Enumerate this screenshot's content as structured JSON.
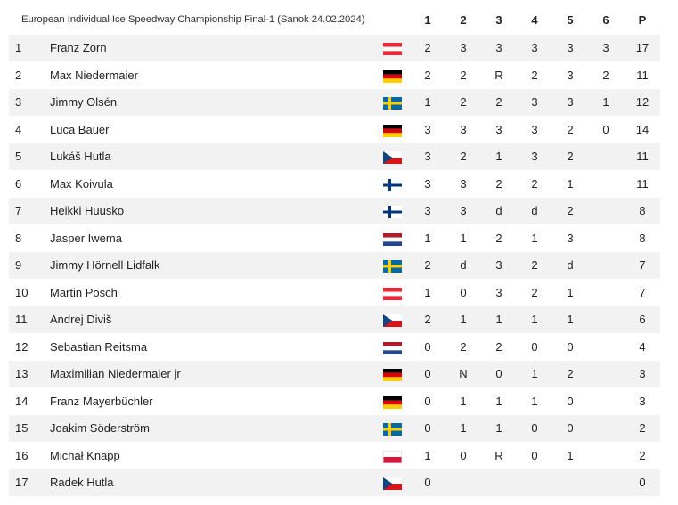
{
  "table": {
    "title": "European Individual Ice Speedway Championship Final-1 (Sanok 24.02.2024)",
    "columns": [
      "1",
      "2",
      "3",
      "4",
      "5",
      "6",
      "P"
    ],
    "rows": [
      {
        "pos": "1",
        "name": "Franz Zorn",
        "flag": "AUT",
        "heats": [
          "2",
          "3",
          "3",
          "3",
          "3",
          "3"
        ],
        "points": "17"
      },
      {
        "pos": "2",
        "name": "Max Niedermaier",
        "flag": "GER",
        "heats": [
          "2",
          "2",
          "R",
          "2",
          "3",
          "2"
        ],
        "points": "11"
      },
      {
        "pos": "3",
        "name": "Jimmy Olsén",
        "flag": "SWE",
        "heats": [
          "1",
          "2",
          "2",
          "3",
          "3",
          "1"
        ],
        "points": "12"
      },
      {
        "pos": "4",
        "name": "Luca Bauer",
        "flag": "GER",
        "heats": [
          "3",
          "3",
          "3",
          "3",
          "2",
          "0"
        ],
        "points": "14"
      },
      {
        "pos": "5",
        "name": "Lukáš Hutla",
        "flag": "CZE",
        "heats": [
          "3",
          "2",
          "1",
          "3",
          "2",
          ""
        ],
        "points": "11"
      },
      {
        "pos": "6",
        "name": "Max Koivula",
        "flag": "FIN",
        "heats": [
          "3",
          "3",
          "2",
          "2",
          "1",
          ""
        ],
        "points": "11"
      },
      {
        "pos": "7",
        "name": "Heikki Huusko",
        "flag": "FIN",
        "heats": [
          "3",
          "3",
          "d",
          "d",
          "2",
          ""
        ],
        "points": "8"
      },
      {
        "pos": "8",
        "name": "Jasper Iwema",
        "flag": "NED",
        "heats": [
          "1",
          "1",
          "2",
          "1",
          "3",
          ""
        ],
        "points": "8"
      },
      {
        "pos": "9",
        "name": "Jimmy Hörnell Lidfalk",
        "flag": "SWE",
        "heats": [
          "2",
          "d",
          "3",
          "2",
          "d",
          ""
        ],
        "points": "7"
      },
      {
        "pos": "10",
        "name": "Martin Posch",
        "flag": "AUT",
        "heats": [
          "1",
          "0",
          "3",
          "2",
          "1",
          ""
        ],
        "points": "7"
      },
      {
        "pos": "11",
        "name": "Andrej Diviš",
        "flag": "CZE",
        "heats": [
          "2",
          "1",
          "1",
          "1",
          "1",
          ""
        ],
        "points": "6"
      },
      {
        "pos": "12",
        "name": "Sebastian Reitsma",
        "flag": "NED",
        "heats": [
          "0",
          "2",
          "2",
          "0",
          "0",
          ""
        ],
        "points": "4"
      },
      {
        "pos": "13",
        "name": "Maximilian Niedermaier jr",
        "flag": "GER",
        "heats": [
          "0",
          "N",
          "0",
          "1",
          "2",
          ""
        ],
        "points": "3"
      },
      {
        "pos": "14",
        "name": "Franz Mayerbüchler",
        "flag": "GER",
        "heats": [
          "0",
          "1",
          "1",
          "1",
          "0",
          ""
        ],
        "points": "3"
      },
      {
        "pos": "15",
        "name": "Joakim Söderström",
        "flag": "SWE",
        "heats": [
          "0",
          "1",
          "1",
          "0",
          "0",
          ""
        ],
        "points": "2"
      },
      {
        "pos": "16",
        "name": "Michał Knapp",
        "flag": "POL",
        "heats": [
          "1",
          "0",
          "R",
          "0",
          "1",
          ""
        ],
        "points": "2"
      },
      {
        "pos": "17",
        "name": "Radek Hutla",
        "flag": "CZE",
        "heats": [
          "0",
          "",
          "",
          "",
          "",
          ""
        ],
        "points": "0"
      }
    ]
  },
  "flag_colors": {
    "AUT": [
      "#ED2939",
      "#FFFFFF",
      "#ED2939"
    ],
    "GER": [
      "#000000",
      "#DD0000",
      "#FFCE00"
    ],
    "SWE": [
      "#006AA7",
      "#FECC00"
    ],
    "CZE": [
      "#FFFFFF",
      "#D7141A",
      "#11457E"
    ],
    "FIN": [
      "#FFFFFF",
      "#003580"
    ],
    "NED": [
      "#AE1C28",
      "#FFFFFF",
      "#21468B"
    ],
    "POL": [
      "#FFFFFF",
      "#DC143C"
    ]
  }
}
